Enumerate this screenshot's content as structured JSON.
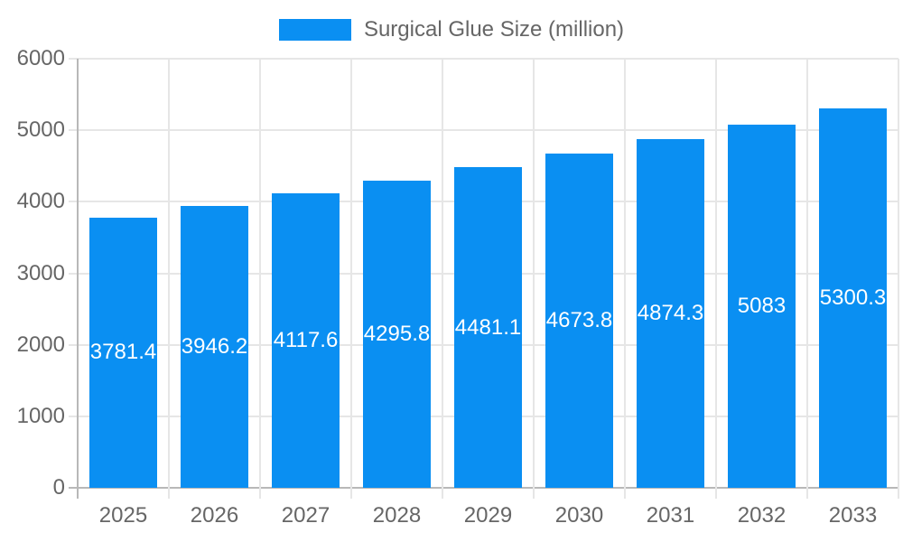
{
  "chart_data": {
    "type": "bar",
    "title": "Surgical Glue Size (million)",
    "series_name": "Surgical Glue Size (million)",
    "categories": [
      "2025",
      "2026",
      "2027",
      "2028",
      "2029",
      "2030",
      "2031",
      "2032",
      "2033"
    ],
    "values": [
      3781.4,
      3946.2,
      4117.6,
      4295.8,
      4481.1,
      4673.8,
      4874.3,
      5083,
      5300.3
    ],
    "data_labels": [
      "3781.4",
      "3946.2",
      "4117.6",
      "4295.8",
      "4481.1",
      "4673.8",
      "4874.3",
      "5083",
      "5300.3"
    ],
    "xlabel": "",
    "ylabel": "",
    "ylim": [
      0,
      6000
    ],
    "yticks": [
      0,
      1000,
      2000,
      3000,
      4000,
      5000,
      6000
    ],
    "grid": true,
    "legend_position": "top",
    "colors": {
      "bar": "#0a8ff2",
      "data_label": "#ffffff",
      "axis_text": "#666666",
      "grid_line": "#e6e6e6",
      "axis_line": "#b8b8b8",
      "background": "#ffffff"
    }
  }
}
